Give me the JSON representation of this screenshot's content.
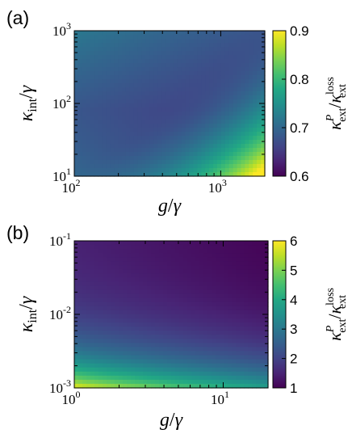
{
  "chart_data": [
    {
      "type": "heatmap",
      "panel_label": "(a)",
      "x_label": "g/γ",
      "x_label_main": "g",
      "x_label_den": "γ",
      "y_label_main": "κ",
      "y_label_sub": "int",
      "y_label_den": "γ",
      "x_scale": "log",
      "y_scale": "log",
      "xlim": [
        100,
        2000
      ],
      "ylim": [
        10,
        1000
      ],
      "x_ticks": [
        {
          "base": "10",
          "exp": "2"
        },
        {
          "base": "10",
          "exp": "3"
        }
      ],
      "y_ticks": [
        {
          "base": "10",
          "exp": "1"
        },
        {
          "base": "10",
          "exp": "2"
        },
        {
          "base": "10",
          "exp": "3"
        }
      ],
      "colorbar": {
        "label_num": "κ",
        "label_num_sup": "P",
        "label_num_sub": "ext",
        "label_den": "κ",
        "label_den_sup": "loss",
        "label_den_sub": "ext",
        "min": 0.6,
        "max": 0.9,
        "ticks": [
          "0.6",
          "0.7",
          "0.8",
          "0.9"
        ],
        "colormap": "viridis"
      },
      "value_grid": {
        "description_x": "log10(g/γ) from 2.0 to 3.3",
        "description_y": "log10(κ_int/γ) from 1 to 3",
        "corners": {
          "x_min_y_min": 0.7,
          "x_min_y_max": 0.72,
          "x_max_y_min": 0.88,
          "x_max_y_max": 0.7
        },
        "min_region_value": 0.66
      }
    },
    {
      "type": "heatmap",
      "panel_label": "(b)",
      "x_label": "g/γ",
      "x_label_main": "g",
      "x_label_den": "γ",
      "y_label_main": "κ",
      "y_label_sub": "int",
      "y_label_den": "γ",
      "x_scale": "log",
      "y_scale": "log",
      "xlim": [
        1,
        20
      ],
      "ylim": [
        0.001,
        0.1
      ],
      "x_ticks": [
        {
          "base": "10",
          "exp": "0"
        },
        {
          "base": "10",
          "exp": "1"
        }
      ],
      "y_ticks": [
        {
          "base": "10",
          "exp": "-3"
        },
        {
          "base": "10",
          "exp": "-2"
        },
        {
          "base": "10",
          "exp": "-1"
        }
      ],
      "colorbar": {
        "label_num": "κ",
        "label_num_sup": "P",
        "label_num_sub": "ext",
        "label_den": "κ",
        "label_den_sup": "loss",
        "label_den_sub": "ext",
        "min": 1,
        "max": 6,
        "ticks": [
          "1",
          "2",
          "3",
          "4",
          "5",
          "6"
        ],
        "colormap": "viridis"
      },
      "value_grid": {
        "corners": {
          "x_min_y_min": 5.9,
          "x_min_y_max": 1.4,
          "x_max_y_min": 3.8,
          "x_max_y_max": 1.0
        }
      }
    }
  ]
}
